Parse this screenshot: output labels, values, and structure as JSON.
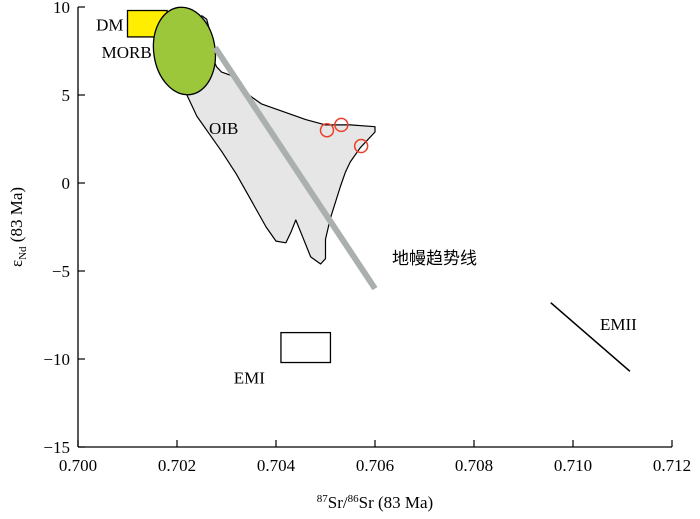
{
  "chart_data": {
    "type": "scatter",
    "xlabel": {
      "sup1": "87",
      "text1": "Sr/",
      "sup2": "86",
      "text2": "Sr (83 Ma)"
    },
    "ylabel": {
      "main": "ε",
      "sub": "Nd",
      "rest": " (83 Ma)"
    },
    "xlim": [
      0.7,
      0.712
    ],
    "ylim": [
      -15,
      10
    ],
    "xticks": [
      0.7,
      0.702,
      0.704,
      0.706,
      0.708,
      0.71,
      0.712
    ],
    "xtick_labels": [
      "0.700",
      "0.702",
      "0.704",
      "0.706",
      "0.708",
      "0.710",
      "0.712"
    ],
    "yticks": [
      10,
      5,
      0,
      -5,
      -10,
      -15
    ],
    "ytick_labels": [
      "10",
      "5",
      "0",
      "−5",
      "−10",
      "−15"
    ],
    "grid": false,
    "fields": {
      "dm": {
        "label": "DM",
        "color": "#ffee00",
        "x": [
          0.701,
          0.7018
        ],
        "y": [
          8.3,
          9.8
        ]
      },
      "morb": {
        "label": "MORB",
        "color": "#9dc73a",
        "cx": 0.70215,
        "cy": 7.5,
        "rx": 0.00062,
        "ry": 2.5
      },
      "oib": {
        "label": "OIB",
        "color": "#e6e6e6",
        "outline": [
          [
            0.702,
            6.2
          ],
          [
            0.7021,
            5.6
          ],
          [
            0.7022,
            5.0
          ],
          [
            0.7023,
            4.4
          ],
          [
            0.7024,
            3.8
          ],
          [
            0.7026,
            3.0
          ],
          [
            0.7029,
            1.8
          ],
          [
            0.7032,
            0.5
          ],
          [
            0.7035,
            -1.0
          ],
          [
            0.7038,
            -2.5
          ],
          [
            0.704,
            -3.3
          ],
          [
            0.7042,
            -3.4
          ],
          [
            0.7043,
            -2.8
          ],
          [
            0.7044,
            -2.1
          ],
          [
            0.7045,
            -2.8
          ],
          [
            0.7047,
            -4.2
          ],
          [
            0.7049,
            -4.6
          ],
          [
            0.705,
            -4.3
          ],
          [
            0.705,
            -3.2
          ],
          [
            0.7051,
            -2.0
          ],
          [
            0.7053,
            -0.2
          ],
          [
            0.7054,
            0.6
          ],
          [
            0.7055,
            1.2
          ],
          [
            0.7057,
            2.0
          ],
          [
            0.706,
            2.9
          ],
          [
            0.706,
            3.2
          ],
          [
            0.7055,
            3.3
          ],
          [
            0.705,
            3.3
          ],
          [
            0.7046,
            3.6
          ],
          [
            0.7042,
            4.0
          ],
          [
            0.7037,
            4.5
          ],
          [
            0.7033,
            5.3
          ],
          [
            0.7031,
            6.1
          ],
          [
            0.7029,
            6.3
          ],
          [
            0.7028,
            6.6
          ],
          [
            0.7027,
            7.2
          ],
          [
            0.7027,
            8.2
          ],
          [
            0.7026,
            9.3
          ],
          [
            0.7025,
            9.5
          ],
          [
            0.7024,
            9.3
          ],
          [
            0.7023,
            8.6
          ],
          [
            0.7021,
            7.8
          ],
          [
            0.7019,
            6.8
          ]
        ]
      },
      "emi": {
        "label": "EMI",
        "x": [
          0.7041,
          0.7051
        ],
        "y": [
          -10.2,
          -8.5
        ]
      },
      "emii": {
        "label": "EMII",
        "from": [
          0.70955,
          -6.8
        ],
        "to": [
          0.71115,
          -10.7
        ]
      }
    },
    "mantle_array": {
      "label": "地幔趋势线",
      "from": [
        0.70277,
        7.7
      ],
      "to": [
        0.706,
        -6.0
      ],
      "color": "#aab0ae"
    },
    "samples": {
      "marker_color": "#e8402a",
      "points": [
        {
          "x": 0.70503,
          "y": 3.0
        },
        {
          "x": 0.70532,
          "y": 3.3
        },
        {
          "x": 0.70572,
          "y": 2.1
        }
      ]
    }
  }
}
